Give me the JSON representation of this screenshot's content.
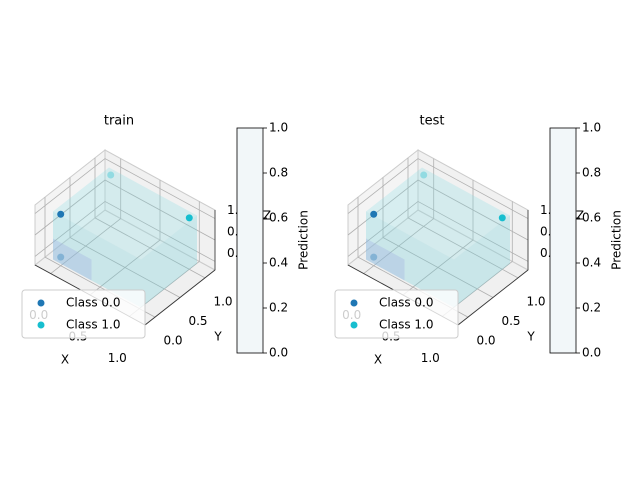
{
  "chart_data": [
    {
      "type": "scatter3d",
      "title": "train",
      "xlabel": "X",
      "ylabel": "Y",
      "zlabel": "Z",
      "xlim": [
        -0.2,
        1.2
      ],
      "ylim": [
        -0.2,
        1.2
      ],
      "zlim": [
        -0.2,
        1.2
      ],
      "xticks": [
        {
          "value": 0,
          "label": "0.0"
        },
        {
          "value": 0.5,
          "label": "0.5"
        },
        {
          "value": 1,
          "label": "1.0"
        }
      ],
      "yticks": [
        {
          "value": 0,
          "label": "0.0"
        },
        {
          "value": 0.5,
          "label": "0.5"
        },
        {
          "value": 1,
          "label": "1.0"
        }
      ],
      "zticks": [
        {
          "value": 0,
          "label": "0.0"
        },
        {
          "value": 0.5,
          "label": "0.5"
        },
        {
          "value": 1,
          "label": "1.0"
        }
      ],
      "grid": true,
      "legend": "lower left",
      "series": [
        {
          "name": "Class 0.0",
          "color": "#1f77b4",
          "x": [
            0,
            0
          ],
          "y": [
            0,
            0
          ],
          "z": [
            0,
            1
          ]
        },
        {
          "name": "Class 1.0",
          "color": "#17becf",
          "x": [
            0,
            1
          ],
          "y": [
            1,
            1
          ],
          "z": [
            1,
            1
          ]
        }
      ],
      "colorbar": {
        "label": "Prediction",
        "lim": [
          0,
          1
        ],
        "color": "#f2f7f9",
        "ticks": [
          {
            "value": 0,
            "label": "0.0"
          },
          {
            "value": 0.2,
            "label": "0.2"
          },
          {
            "value": 0.4,
            "label": "0.4"
          },
          {
            "value": 0.6,
            "label": "0.6"
          },
          {
            "value": 0.8,
            "label": "0.8"
          },
          {
            "value": 1,
            "label": "1.0"
          }
        ]
      }
    },
    {
      "type": "scatter3d",
      "title": "test",
      "xlabel": "X",
      "ylabel": "Y",
      "zlabel": "Z",
      "xlim": [
        -0.2,
        1.2
      ],
      "ylim": [
        -0.2,
        1.2
      ],
      "zlim": [
        -0.2,
        1.2
      ],
      "xticks": [
        {
          "value": 0,
          "label": "0.0"
        },
        {
          "value": 0.5,
          "label": "0.5"
        },
        {
          "value": 1,
          "label": "1.0"
        }
      ],
      "yticks": [
        {
          "value": 0,
          "label": "0.0"
        },
        {
          "value": 0.5,
          "label": "0.5"
        },
        {
          "value": 1,
          "label": "1.0"
        }
      ],
      "zticks": [
        {
          "value": 0,
          "label": "0.0"
        },
        {
          "value": 0.5,
          "label": "0.5"
        },
        {
          "value": 1,
          "label": "1.0"
        }
      ],
      "grid": true,
      "legend": "lower left",
      "series": [
        {
          "name": "Class 0.0",
          "color": "#1f77b4",
          "x": [
            0,
            0
          ],
          "y": [
            0,
            0
          ],
          "z": [
            0,
            1
          ]
        },
        {
          "name": "Class 1.0",
          "color": "#17becf",
          "x": [
            0,
            1
          ],
          "y": [
            1,
            1
          ],
          "z": [
            1,
            1
          ]
        }
      ],
      "colorbar": {
        "label": "Prediction",
        "lim": [
          0,
          1
        ],
        "color": "#f2f7f9",
        "ticks": [
          {
            "value": 0,
            "label": "0.0"
          },
          {
            "value": 0.2,
            "label": "0.2"
          },
          {
            "value": 0.4,
            "label": "0.4"
          },
          {
            "value": 0.6,
            "label": "0.6"
          },
          {
            "value": 0.8,
            "label": "0.8"
          },
          {
            "value": 1,
            "label": "1.0"
          }
        ]
      }
    }
  ]
}
